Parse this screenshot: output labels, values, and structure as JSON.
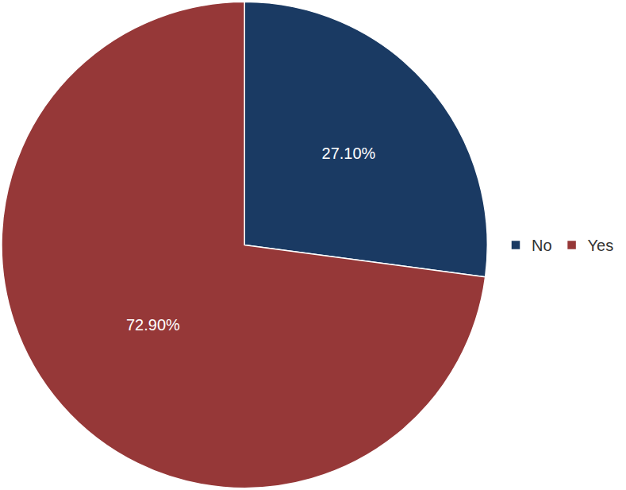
{
  "chart_data": {
    "type": "pie",
    "categories": [
      "No",
      "Yes"
    ],
    "values": [
      27.1,
      72.9
    ],
    "value_labels": [
      "27.10%",
      "72.90%"
    ],
    "colors": [
      "#1a3a63",
      "#963838"
    ],
    "data_labels": true,
    "legend": "right"
  }
}
